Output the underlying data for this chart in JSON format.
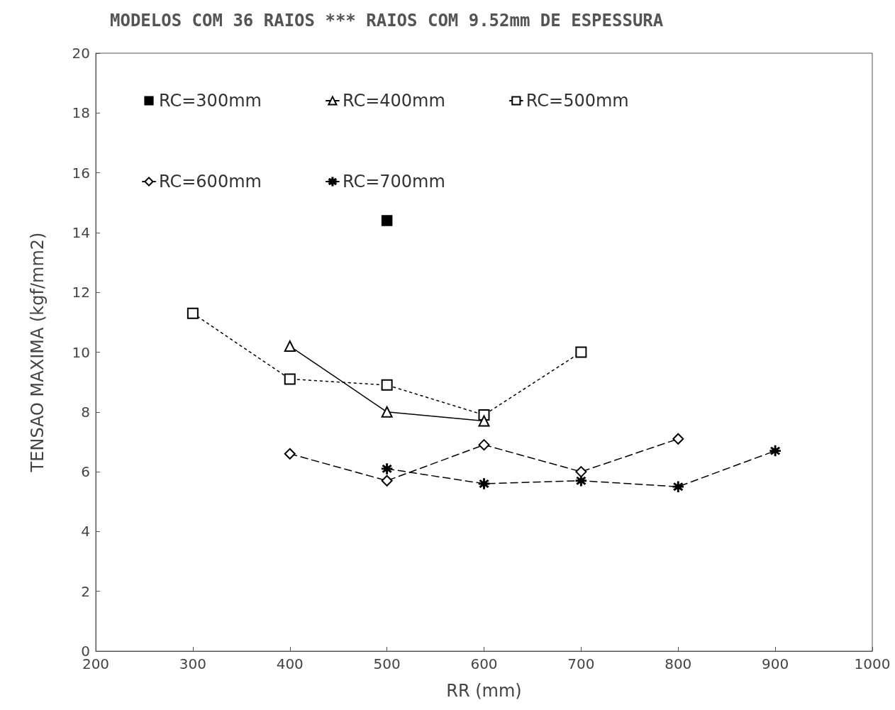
{
  "chart_data": {
    "type": "line",
    "title": "MODELOS COM 36 RAIOS *** RAIOS COM 9.52mm DE ESPESSURA",
    "xlabel": "RR (mm)",
    "ylabel": "TENSAO MAXIMA (kgf/mm2)",
    "xlim": [
      200,
      1000
    ],
    "xticks": [
      200,
      300,
      400,
      500,
      600,
      700,
      800,
      900,
      1000
    ],
    "ylim": [
      0,
      20
    ],
    "yticks": [
      0,
      2,
      4,
      6,
      8,
      10,
      12,
      14,
      16,
      18,
      20
    ],
    "grid": false,
    "legend": "top",
    "series": [
      {
        "name": "RC=300mm",
        "color": "#000000",
        "x": [
          500
        ],
        "values": [
          14.4
        ],
        "marker": "square",
        "line_style": "none"
      },
      {
        "name": "RC=400mm",
        "color": "#000000",
        "x": [
          400,
          500,
          600
        ],
        "values": [
          10.2,
          8.0,
          7.7
        ],
        "marker": "triangle",
        "line_style": "solid"
      },
      {
        "name": "RC=500mm",
        "color": "#000000",
        "x": [
          300,
          400,
          500,
          600,
          700
        ],
        "values": [
          11.3,
          9.1,
          8.9,
          7.9,
          10.0
        ],
        "marker": "square",
        "line_style": "dotted"
      },
      {
        "name": "RC=600mm",
        "color": "#000000",
        "x": [
          400,
          500,
          600,
          700,
          800
        ],
        "values": [
          6.6,
          5.7,
          6.9,
          6.0,
          7.1
        ],
        "marker": "diamond",
        "line_style": "dashed"
      },
      {
        "name": "RC=700mm",
        "color": "#000000",
        "x": [
          500,
          600,
          700,
          800,
          900
        ],
        "values": [
          6.1,
          5.6,
          5.7,
          5.5,
          6.7
        ],
        "marker": "star",
        "line_style": "dashed"
      }
    ]
  }
}
